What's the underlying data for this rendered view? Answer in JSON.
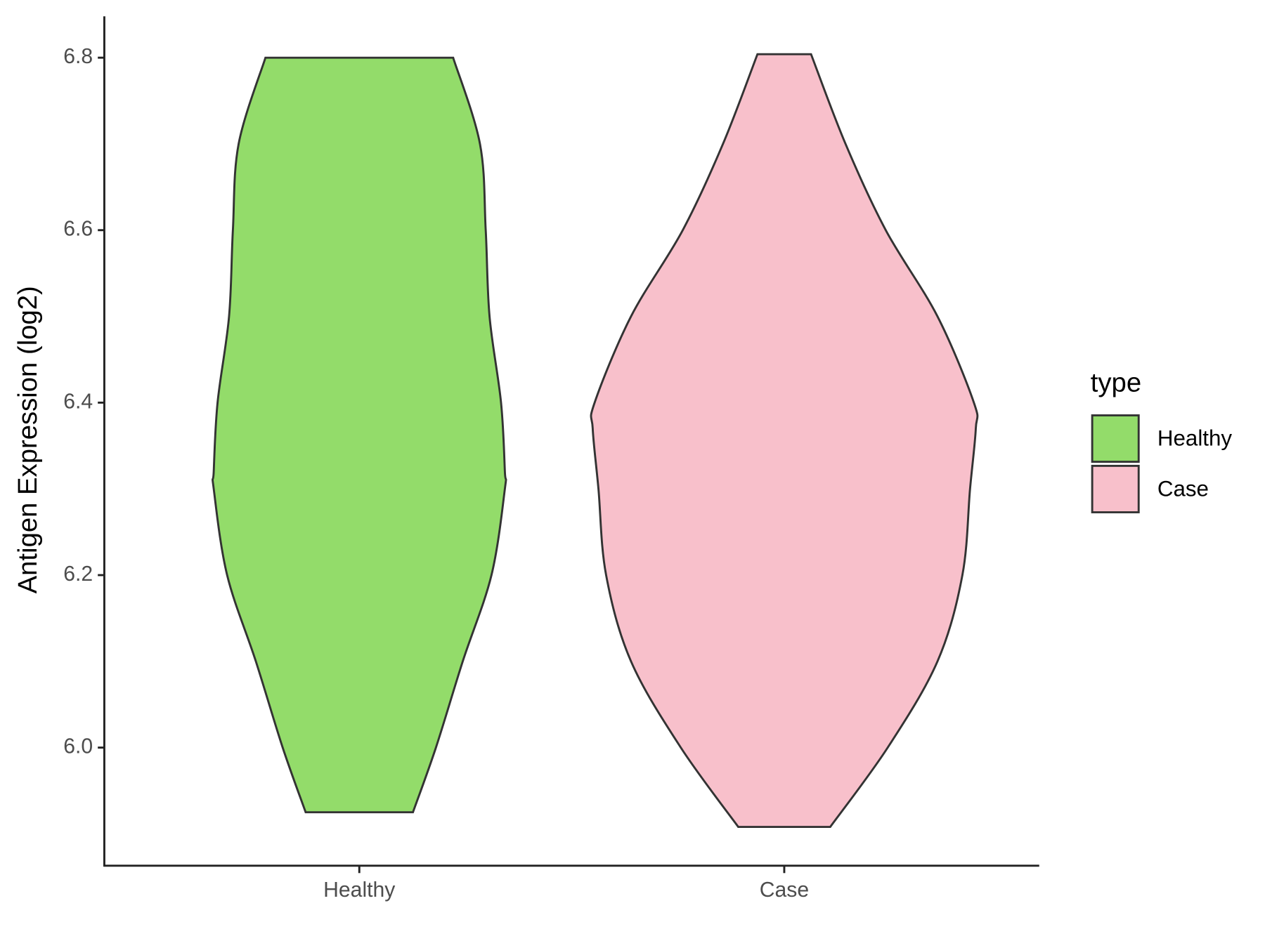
{
  "chart_data": {
    "type": "violin",
    "y_label": "Antigen Expression (log2)",
    "categories": [
      "Healthy",
      "Case"
    ],
    "legend_title": "type",
    "legend_position": "right",
    "ylim": [
      5.863,
      6.848
    ],
    "yticks": [
      {
        "value": 6.0,
        "label": "6.0"
      },
      6.2,
      6.4,
      6.6,
      6.8
    ],
    "series": [
      {
        "name": "Healthy",
        "color": "#93dc6a",
        "y": [
          5.925,
          6.0,
          6.1,
          6.2,
          6.3,
          6.32,
          6.4,
          6.5,
          6.6,
          6.7,
          6.8
        ],
        "density": [
          0.28,
          0.4,
          0.54,
          0.69,
          0.76,
          0.76,
          0.74,
          0.68,
          0.66,
          0.63,
          0.49
        ]
      },
      {
        "name": "Case",
        "color": "#f8c0cb",
        "y": [
          5.908,
          6.0,
          6.1,
          6.2,
          6.3,
          6.37,
          6.4,
          6.5,
          6.6,
          6.7,
          6.804
        ],
        "density": [
          0.24,
          0.54,
          0.8,
          0.93,
          0.97,
          1.0,
          0.99,
          0.8,
          0.53,
          0.32,
          0.14
        ]
      }
    ]
  }
}
